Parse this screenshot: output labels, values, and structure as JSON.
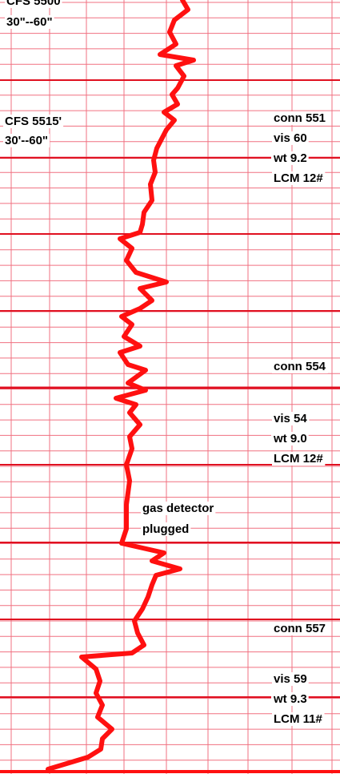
{
  "left_notes": [
    {
      "sample": "CFS 5500",
      "interval": "30\"--60\""
    },
    {
      "sample": "CFS 5515'",
      "interval": "30'--60\""
    }
  ],
  "right_notes": [
    {
      "connection": "conn 551",
      "lines": [
        "vis 60",
        "wt 9.2",
        "LCM 12#"
      ]
    },
    {
      "connection": "conn 554",
      "lines": [
        "vis 54",
        "wt 9.0",
        "LCM 12#"
      ]
    },
    {
      "connection": "conn 557",
      "lines": [
        "vis 59",
        "wt 9.3",
        "LCM 11#"
      ]
    }
  ],
  "gas_note": [
    "gas detector",
    "plugged"
  ]
}
